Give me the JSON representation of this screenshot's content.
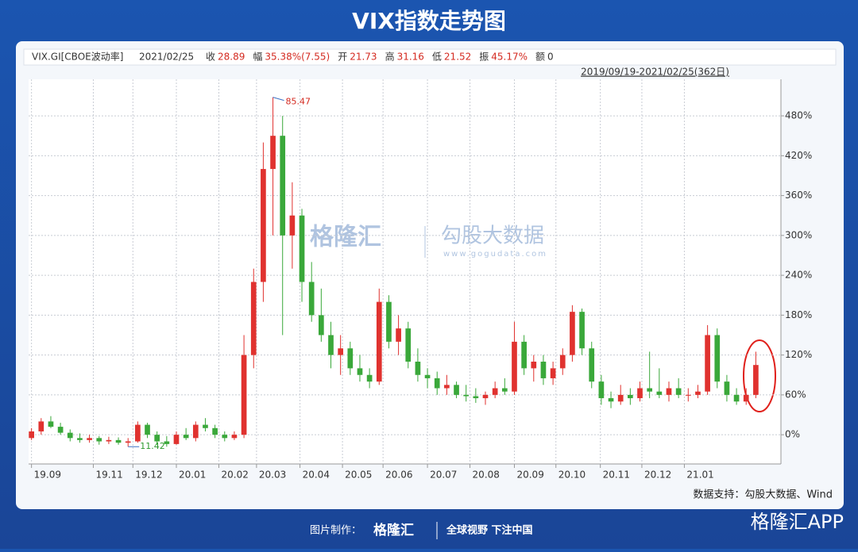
{
  "chart_data": {
    "type": "candlestick",
    "title": "VIX指数走势图",
    "info": {
      "name": "VIX.GI[CBOE波动率]",
      "date": "2021/02/25",
      "items": [
        {
          "label": "收",
          "value": "28.89"
        },
        {
          "label": "幅",
          "value": "35.38%(7.55)"
        },
        {
          "label": "开",
          "value": "21.73"
        },
        {
          "label": "高",
          "value": "31.16"
        },
        {
          "label": "低",
          "value": "21.52"
        },
        {
          "label": "振",
          "value": "45.17%"
        },
        {
          "label": "额",
          "value": "0"
        }
      ]
    },
    "range": "2019/09/19-2021/02/25(362日)",
    "up_color": "#e0322f",
    "down_color": "#3aa83a",
    "candles": [
      [
        -5,
        10,
        -8,
        5
      ],
      [
        5,
        25,
        0,
        20
      ],
      [
        20,
        28,
        10,
        12
      ],
      [
        12,
        18,
        0,
        3
      ],
      [
        3,
        8,
        -10,
        -5
      ],
      [
        -5,
        2,
        -12,
        -8
      ],
      [
        -8,
        0,
        -12,
        -5
      ],
      [
        -5,
        -2,
        -15,
        -10
      ],
      [
        -10,
        -3,
        -14,
        -8
      ],
      [
        -8,
        -4,
        -15,
        -12
      ],
      [
        -12,
        -5,
        -18,
        -10
      ],
      [
        -10,
        20,
        -12,
        15
      ],
      [
        15,
        18,
        -5,
        0
      ],
      [
        0,
        5,
        -15,
        -10
      ],
      [
        -10,
        -2,
        -18,
        -14
      ],
      [
        -14,
        5,
        -15,
        0
      ],
      [
        0,
        10,
        -8,
        -5
      ],
      [
        -5,
        20,
        -10,
        15
      ],
      [
        15,
        25,
        5,
        10
      ],
      [
        10,
        15,
        -5,
        0
      ],
      [
        0,
        5,
        -10,
        -5
      ],
      [
        -5,
        5,
        -8,
        0
      ],
      [
        0,
        150,
        -5,
        120
      ],
      [
        120,
        250,
        100,
        230
      ],
      [
        230,
        440,
        200,
        400
      ],
      [
        400,
        508,
        300,
        450
      ],
      [
        450,
        480,
        150,
        300
      ],
      [
        300,
        380,
        250,
        330
      ],
      [
        330,
        340,
        200,
        230
      ],
      [
        230,
        260,
        170,
        180
      ],
      [
        180,
        220,
        140,
        150
      ],
      [
        150,
        170,
        100,
        120
      ],
      [
        120,
        150,
        90,
        130
      ],
      [
        130,
        140,
        90,
        100
      ],
      [
        100,
        120,
        80,
        90
      ],
      [
        90,
        100,
        70,
        80
      ],
      [
        80,
        220,
        75,
        200
      ],
      [
        200,
        210,
        130,
        140
      ],
      [
        140,
        180,
        120,
        160
      ],
      [
        160,
        170,
        100,
        110
      ],
      [
        110,
        130,
        80,
        90
      ],
      [
        90,
        100,
        70,
        85
      ],
      [
        85,
        95,
        60,
        70
      ],
      [
        70,
        90,
        60,
        75
      ],
      [
        75,
        80,
        55,
        60
      ],
      [
        60,
        75,
        50,
        58
      ],
      [
        58,
        70,
        48,
        55
      ],
      [
        55,
        65,
        45,
        60
      ],
      [
        60,
        80,
        55,
        70
      ],
      [
        70,
        85,
        60,
        65
      ],
      [
        65,
        170,
        60,
        140
      ],
      [
        140,
        150,
        90,
        100
      ],
      [
        100,
        120,
        80,
        110
      ],
      [
        110,
        120,
        75,
        85
      ],
      [
        85,
        110,
        75,
        100
      ],
      [
        100,
        130,
        90,
        120
      ],
      [
        120,
        195,
        110,
        185
      ],
      [
        185,
        190,
        120,
        130
      ],
      [
        130,
        140,
        70,
        80
      ],
      [
        80,
        90,
        45,
        55
      ],
      [
        55,
        65,
        40,
        50
      ],
      [
        50,
        75,
        45,
        60
      ],
      [
        60,
        70,
        45,
        55
      ],
      [
        55,
        80,
        50,
        70
      ],
      [
        70,
        125,
        55,
        65
      ],
      [
        65,
        100,
        55,
        60
      ],
      [
        60,
        80,
        50,
        70
      ],
      [
        70,
        85,
        55,
        60
      ],
      [
        60,
        70,
        50,
        60
      ],
      [
        60,
        75,
        55,
        65
      ],
      [
        65,
        165,
        60,
        150
      ],
      [
        150,
        160,
        70,
        80
      ],
      [
        80,
        90,
        50,
        60
      ],
      [
        60,
        70,
        45,
        50
      ],
      [
        50,
        70,
        45,
        60
      ],
      [
        60,
        125,
        55,
        105
      ]
    ],
    "xlim": [
      -0.3,
      77.6
    ],
    "xticks": [
      {
        "value": 0,
        "label": "19.09"
      },
      {
        "value": 6.4,
        "label": "19.11"
      },
      {
        "value": 10.5,
        "label": "19.12"
      },
      {
        "value": 15,
        "label": "20.01"
      },
      {
        "value": 19.4,
        "label": "20.02"
      },
      {
        "value": 23.3,
        "label": "20.03"
      },
      {
        "value": 27.8,
        "label": "20.04"
      },
      {
        "value": 32.2,
        "label": "20.05"
      },
      {
        "value": 36.4,
        "label": "20.06"
      },
      {
        "value": 41,
        "label": "20.07"
      },
      {
        "value": 45.4,
        "label": "20.08"
      },
      {
        "value": 50,
        "label": "20.09"
      },
      {
        "value": 54.3,
        "label": "20.10"
      },
      {
        "value": 58.9,
        "label": "20.11"
      },
      {
        "value": 63.2,
        "label": "20.12"
      },
      {
        "value": 67.6,
        "label": "21.01"
      }
    ],
    "ylim": [
      -44,
      535
    ],
    "yticks": [
      {
        "value": 0,
        "label": "0%"
      },
      {
        "value": 60,
        "label": "60%"
      },
      {
        "value": 120,
        "label": "120%"
      },
      {
        "value": 180,
        "label": "180%"
      },
      {
        "value": 240,
        "label": "240%"
      },
      {
        "value": 300,
        "label": "300%"
      },
      {
        "value": 360,
        "label": "360%"
      },
      {
        "value": 420,
        "label": "420%"
      },
      {
        "value": 480,
        "label": "480%"
      }
    ],
    "grid": true,
    "max_label": "85.47",
    "min_label": "11.42",
    "watermark": {
      "brand": "格隆汇",
      "site": "勾股大数据",
      "url": "www.gogudata.com"
    },
    "source": "数据支持：勾股大数据、Wind",
    "footer": {
      "made_by": "图片制作：",
      "brand": "格隆汇",
      "slogan": "全球视野 下注中国",
      "app": "格隆汇APP"
    }
  }
}
